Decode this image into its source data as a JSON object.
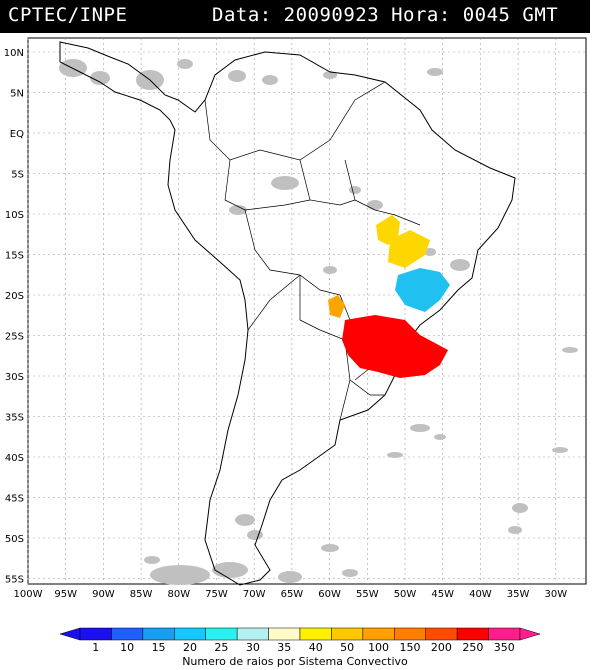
{
  "header": {
    "agency": "CPTEC/INPE",
    "datetime": "Data: 20090923 Hora: 0045 GMT"
  },
  "latitude_labels": [
    "10N",
    "5N",
    "EQ",
    "5S",
    "10S",
    "15S",
    "20S",
    "25S",
    "30S",
    "35S",
    "40S",
    "45S",
    "50S",
    "55S"
  ],
  "longitude_labels": [
    "100W",
    "95W",
    "90W",
    "85W",
    "80W",
    "75W",
    "70W",
    "65W",
    "60W",
    "55W",
    "50W",
    "45W",
    "40W",
    "35W",
    "30W"
  ],
  "colorbar": {
    "values": [
      "1",
      "10",
      "15",
      "20",
      "25",
      "30",
      "35",
      "40",
      "50",
      "100",
      "150",
      "200",
      "250",
      "350"
    ],
    "colors": [
      "#1c0ff0",
      "#1e60ff",
      "#1a9ef0",
      "#16c8ff",
      "#2af0f0",
      "#b4f0f0",
      "#fffac8",
      "#fff000",
      "#ffc800",
      "#ffa000",
      "#ff7d00",
      "#ff4b00",
      "#ff0000",
      "#ff1e8c"
    ],
    "caption": "Numero de raios por Sistema Convectivo"
  },
  "colors": {
    "cloud": "#c0c0c0",
    "yellow": "#ffd700",
    "cyan": "#20c0f0",
    "orange": "#ffa500",
    "red": "#ff0000"
  }
}
